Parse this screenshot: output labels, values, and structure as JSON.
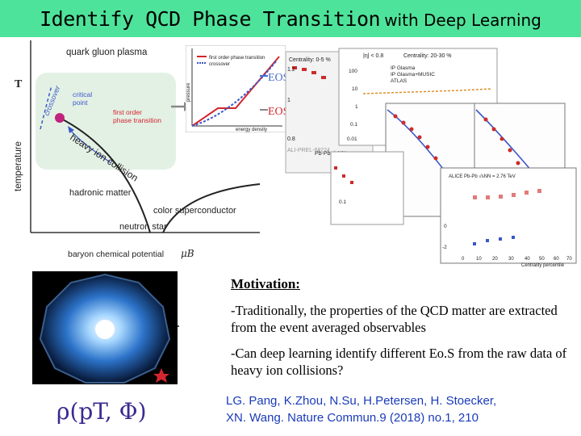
{
  "title": {
    "main": "Identify QCD Phase Transition",
    "rest": "with Deep Learning"
  },
  "phase_diagram": {
    "region_top": "quark gluon plasma",
    "y_axis": "temperature",
    "T_label": "T",
    "crossover": "crossover",
    "critical_point": "critical point",
    "first_order": "first order phase transition",
    "heavy_ion": "heavy ion collision",
    "hadronic": "hadronic matter",
    "color_sc": "color superconductor",
    "neutron_star": "neutron star",
    "x_axis": "baryon chemical potential",
    "mu_B": "μB",
    "colors": {
      "background_panel": "#e3f1e5",
      "critical_point": "#c0247d",
      "first_order": "#d4262e"
    }
  },
  "eos_inset": {
    "legend_first": "first order phase transition",
    "legend_crossover": "crossover",
    "y_label": "pressure",
    "x_label": "energy density",
    "eosl": "EOSL",
    "eosq": "EOSQ"
  },
  "plots": {
    "centrality_a": "Centrality: 0-5 %",
    "centrality_b": "Centrality: 20-30 %",
    "eta": "|η| < 0.8",
    "legend_a": "IP Glasma",
    "legend_b": "IP Glasma+MUSIC",
    "legend_c": "ATLAS",
    "pbpb": "Pb-Pb √sNN",
    "alice": "ALI-PREL-68224",
    "alice_b": "ALICE Pb-Pb √sNN = 2.76 TeV",
    "x_axis": "Centrality percentile",
    "ticks_left": [
      "100",
      "10",
      "1",
      "0.1",
      "0.01"
    ],
    "ticks_mid": [
      "1.2",
      "1",
      "0.8"
    ],
    "ticks_x": [
      "0",
      "10",
      "20",
      "30",
      "40",
      "50",
      "60",
      "70"
    ],
    "ticks_y2": [
      "0",
      "-2"
    ]
  },
  "motivation": {
    "heading": "Motivation:",
    "p1": "-Traditionally, the properties of the QCD matter are extracted from the event averaged observables",
    "p2": "-Can deep learning identify different Eo.S from the raw data of heavy ion collisions?"
  },
  "formula": "ρ(pT, Φ)",
  "reference": {
    "line1": "LG. Pang, K.Zhou, N.Su, H.Petersen, H. Stoecker,",
    "line2": "XN. Wang. Nature Commun.9 (2018) no.1, 210"
  }
}
